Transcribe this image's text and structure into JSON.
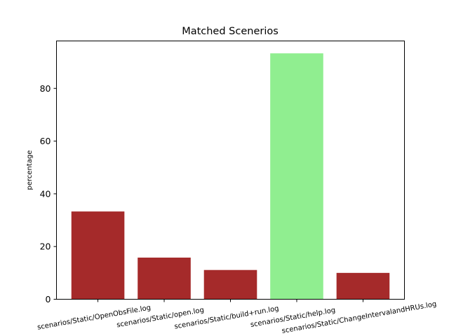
{
  "chart_data": {
    "type": "bar",
    "title": "Matched Scenerios",
    "xlabel": "",
    "ylabel": "percentage",
    "categories": [
      "scenarios/Static/OpenObsFile.log",
      "scenarios/Static/open.log",
      "scenarios/Static/build+run.log",
      "scenarios/Static/help.log",
      "scenarios/Static/ChangeIntervalandHRUs.log"
    ],
    "values": [
      33.3,
      15.8,
      11.1,
      93.3,
      10.0
    ],
    "colors": [
      "#a52a2a",
      "#a52a2a",
      "#a52a2a",
      "#90ee90",
      "#a52a2a"
    ],
    "ylim": [
      0,
      98
    ],
    "yticks": [
      0,
      20,
      40,
      60,
      80
    ],
    "grid": false,
    "legend": "none"
  }
}
